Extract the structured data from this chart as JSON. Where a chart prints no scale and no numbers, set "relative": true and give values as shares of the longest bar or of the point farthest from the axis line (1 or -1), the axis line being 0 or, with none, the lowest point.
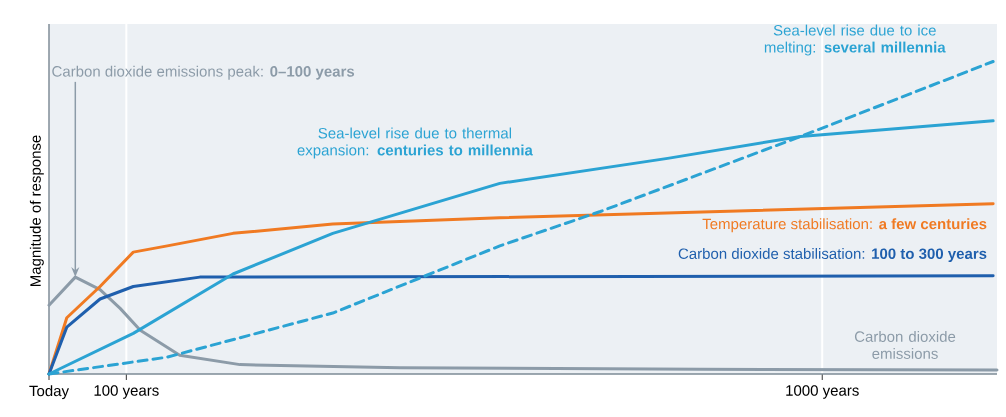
{
  "chart_data": {
    "type": "line",
    "relative": true,
    "xlabel": null,
    "ylabel": "Magnitude of response",
    "xlim": [
      0,
      1226
    ],
    "xticks": [
      {
        "value": 0,
        "label": "Today"
      },
      {
        "value": 100,
        "label": "100 years"
      },
      {
        "value": 1000,
        "label": "1000 years"
      }
    ],
    "grid": "x",
    "annotations": [
      {
        "text": "Carbon dioxide emissions peak: **0–100 years**",
        "x": 34,
        "y": 0.31
      }
    ],
    "series": [
      {
        "name": "Carbon dioxide emissions",
        "color": "#8c9ba8",
        "x": [
          0,
          34,
          66,
          92,
          118,
          169,
          247,
          454,
          842,
          1226
        ],
        "values": [
          0.22,
          0.31,
          0.27,
          0.21,
          0.14,
          0.06,
          0.03,
          0.02,
          0.015,
          0.013
        ]
      },
      {
        "name": "Temperature stabilisation: **a few centuries**",
        "color": "#f07a22",
        "x": [
          0,
          23,
          66,
          109,
          153,
          238,
          367,
          583,
          1221
        ],
        "values": [
          0,
          0.18,
          0.28,
          0.39,
          0.41,
          0.45,
          0.48,
          0.5,
          0.545
        ]
      },
      {
        "name": "Carbon dioxide stabilisation: **100 to 300 years**",
        "color": "#1f5fad",
        "x": [
          0,
          23,
          66,
          109,
          195,
          1221
        ],
        "values": [
          0,
          0.15,
          0.24,
          0.28,
          0.31,
          0.314
        ]
      },
      {
        "name": "Sea-level rise due to thermal expansion: **centuries to millennia**",
        "color": "#2ba3d3",
        "x": [
          0,
          109,
          238,
          367,
          583,
          800,
          972,
          1221
        ],
        "values": [
          0,
          0.13,
          0.32,
          0.45,
          0.61,
          0.69,
          0.76,
          0.81
        ]
      },
      {
        "name": "Sea-level rise due to ice melting: **several millennia**",
        "color": "#2ba3d3",
        "line_style": "dashed",
        "x": [
          0,
          153,
          367,
          583,
          713,
          972,
          1221
        ],
        "values": [
          0,
          0.054,
          0.195,
          0.41,
          0.52,
          0.76,
          1.0
        ]
      }
    ]
  }
}
